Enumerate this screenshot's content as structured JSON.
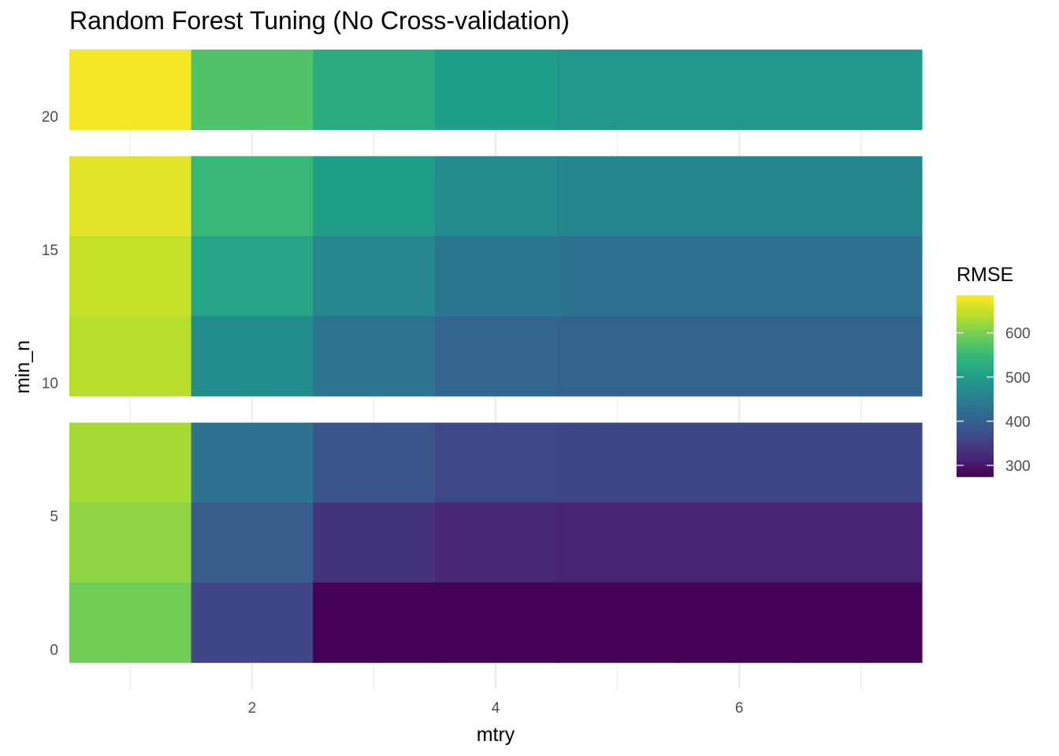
{
  "chart_data": {
    "type": "heatmap",
    "title": "Random Forest Tuning (No Cross-validation)",
    "xlabel": "mtry",
    "ylabel": "min_n",
    "xlim": [
      0.5,
      7.5
    ],
    "ylim": [
      -1.5,
      22.5
    ],
    "x_ticks": [
      2,
      4,
      6
    ],
    "y_ticks": [
      0,
      5,
      10,
      15,
      20
    ],
    "x_values": [
      1,
      2,
      3,
      4,
      5,
      6,
      7
    ],
    "y_values": [
      1,
      4,
      7,
      11,
      14,
      17,
      21
    ],
    "grid": true,
    "legend": {
      "title": "RMSE",
      "position": "right",
      "colormap": "viridis",
      "range": [
        275,
        685
      ],
      "ticks": [
        300,
        400,
        500,
        600
      ]
    },
    "rows": [
      {
        "min_n": 21,
        "rmse": [
          680,
          570,
          530,
          502,
          495,
          495,
          495
        ]
      },
      {
        "min_n": 17,
        "rmse": [
          668,
          550,
          505,
          470,
          462,
          462,
          462
        ]
      },
      {
        "min_n": 14,
        "rmse": [
          650,
          515,
          465,
          440,
          430,
          430,
          430
        ]
      },
      {
        "min_n": 11,
        "rmse": [
          640,
          475,
          435,
          410,
          405,
          405,
          405
        ]
      },
      {
        "min_n": 7,
        "rmse": [
          630,
          430,
          385,
          365,
          362,
          362,
          362
        ]
      },
      {
        "min_n": 4,
        "rmse": [
          615,
          395,
          335,
          318,
          315,
          315,
          315
        ]
      },
      {
        "min_n": 1,
        "rmse": [
          595,
          360,
          277,
          277,
          277,
          277,
          277
        ]
      }
    ]
  }
}
